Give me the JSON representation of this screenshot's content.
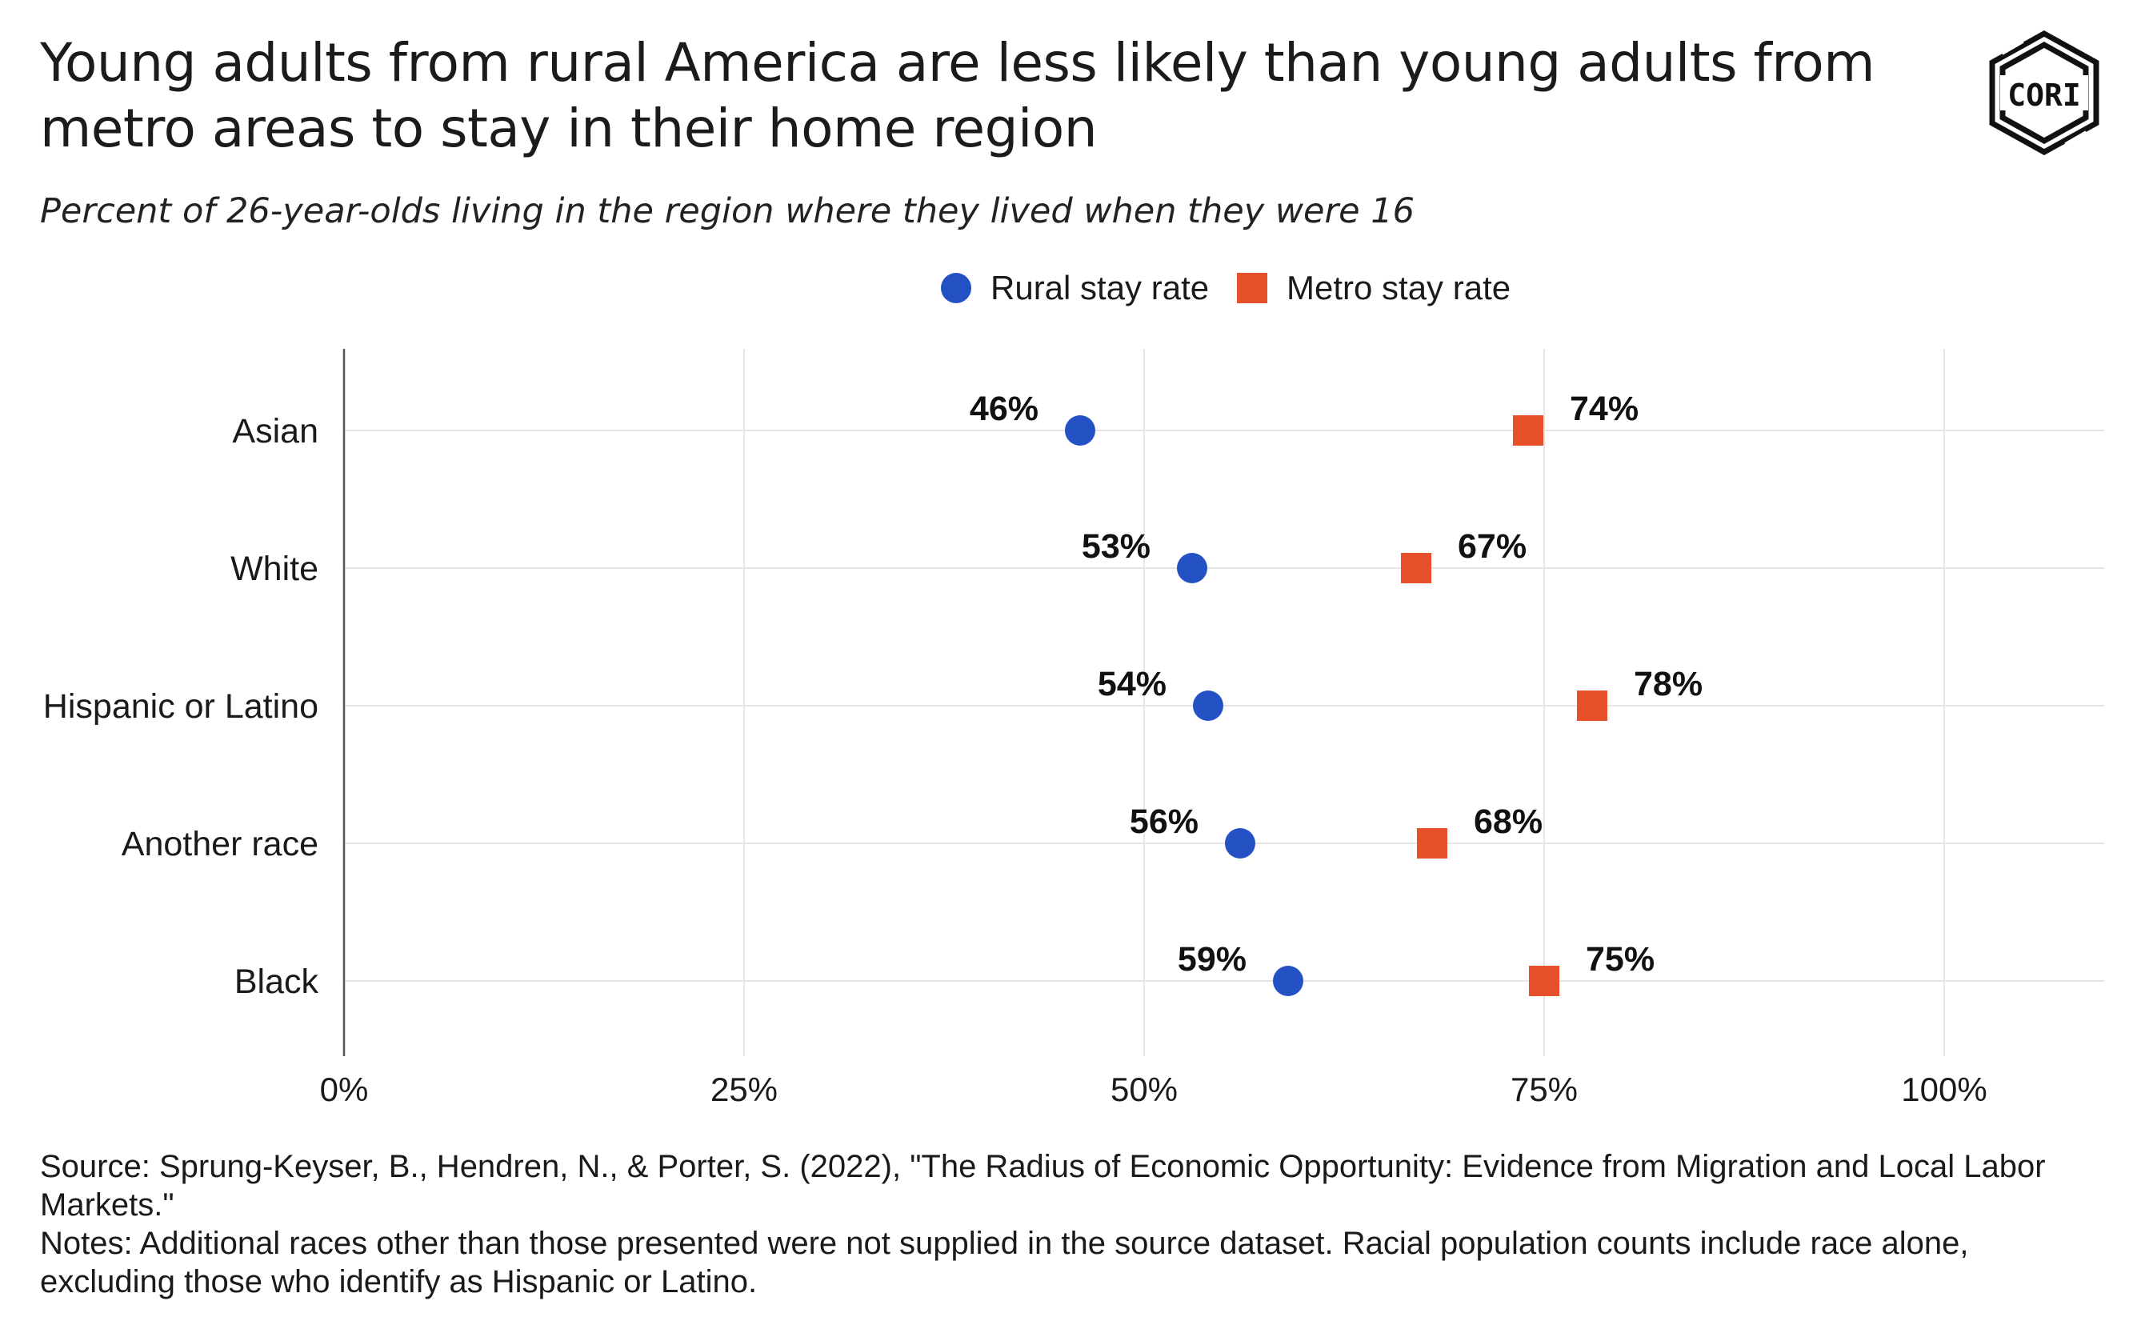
{
  "title": "Young adults from rural America are less likely than young adults from metro areas to stay in their home region",
  "subtitle": "Percent of 26-year-olds living in the region where they lived when they were 16",
  "logo_text": "CORI",
  "colors": {
    "rural": "#2350c2",
    "metro": "#e8502c",
    "grid": "#e6e6e6",
    "axis": "#555555"
  },
  "legend": [
    {
      "label": "Rural stay rate",
      "shape": "circle"
    },
    {
      "label": "Metro stay rate",
      "shape": "square"
    }
  ],
  "chart_data": {
    "type": "scatter",
    "categories": [
      "Asian",
      "White",
      "Hispanic or Latino",
      "Another race",
      "Black"
    ],
    "series": [
      {
        "name": "Rural stay rate",
        "values": [
          46,
          53,
          54,
          56,
          59
        ],
        "labels": [
          "46%",
          "53%",
          "54%",
          "56%",
          "59%"
        ]
      },
      {
        "name": "Metro stay rate",
        "values": [
          74,
          67,
          78,
          68,
          75
        ],
        "labels": [
          "74%",
          "67%",
          "78%",
          "68%",
          "75%"
        ]
      }
    ],
    "xlim": [
      0,
      110
    ],
    "xticks": [
      0,
      25,
      50,
      75,
      100
    ],
    "xtick_labels": [
      "0%",
      "25%",
      "50%",
      "75%",
      "100%"
    ],
    "grid": true,
    "legend_position": "top"
  },
  "footer": {
    "source": "Source: Sprung-Keyser, B., Hendren, N., & Porter, S. (2022), \"The Radius of Economic Opportunity: Evidence from Migration and Local Labor Markets.\"",
    "notes": "Notes: Additional races other than those presented were not supplied in the source dataset. Racial population counts include race alone, excluding those who identify as Hispanic or Latino."
  }
}
